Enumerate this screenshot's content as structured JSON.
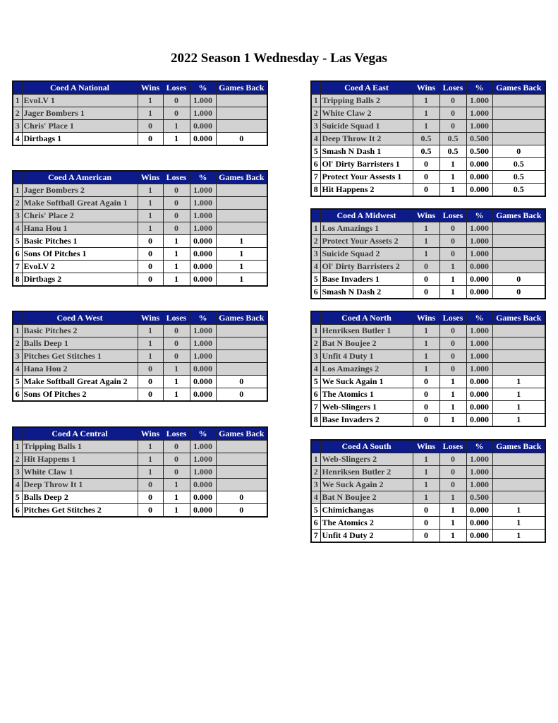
{
  "title": "2022 Season 1 Wednesday - Las Vegas",
  "columns": {
    "wins": "Wins",
    "loses": "Loses",
    "pct": "%",
    "gb": "Games Back"
  },
  "colors": {
    "header_bg": "#0d1a8a",
    "header_text": "#ffffff",
    "shaded_row": "#d2d2d2"
  },
  "divisions": [
    {
      "name": "Coed A National",
      "side": "left",
      "rows": [
        [
          "1",
          "EvoLV 1",
          "1",
          "0",
          "1.000",
          ""
        ],
        [
          "2",
          "Jager Bombers 1",
          "1",
          "0",
          "1.000",
          ""
        ],
        [
          "3",
          "Chris' Place 1",
          "0",
          "1",
          "0.000",
          ""
        ],
        [
          "4",
          "Dirtbags 1",
          "0",
          "1",
          "0.000",
          "0"
        ]
      ]
    },
    {
      "name": "Coed A American",
      "side": "left",
      "rows": [
        [
          "1",
          "Jager Bombers 2",
          "1",
          "0",
          "1.000",
          ""
        ],
        [
          "2",
          "Make Softball Great Again 1",
          "1",
          "0",
          "1.000",
          ""
        ],
        [
          "3",
          "Chris' Place 2",
          "1",
          "0",
          "1.000",
          ""
        ],
        [
          "4",
          "Hana Hou 1",
          "1",
          "0",
          "1.000",
          ""
        ],
        [
          "5",
          "Basic Pitches 1",
          "0",
          "1",
          "0.000",
          "1"
        ],
        [
          "6",
          "Sons Of Pitches 1",
          "0",
          "1",
          "0.000",
          "1"
        ],
        [
          "7",
          "EvoLV 2",
          "0",
          "1",
          "0.000",
          "1"
        ],
        [
          "8",
          "Dirtbags 2",
          "0",
          "1",
          "0.000",
          "1"
        ]
      ]
    },
    {
      "name": "Coed A West",
      "side": "left",
      "rows": [
        [
          "1",
          "Basic Pitches 2",
          "1",
          "0",
          "1.000",
          ""
        ],
        [
          "2",
          "Balls Deep 1",
          "1",
          "0",
          "1.000",
          ""
        ],
        [
          "3",
          "Pitches Get Stitches 1",
          "1",
          "0",
          "1.000",
          ""
        ],
        [
          "4",
          "Hana Hou 2",
          "0",
          "1",
          "0.000",
          ""
        ],
        [
          "5",
          "Make Softball Great Again 2",
          "0",
          "1",
          "0.000",
          "0"
        ],
        [
          "6",
          "Sons Of Pitches 2",
          "0",
          "1",
          "0.000",
          "0"
        ]
      ]
    },
    {
      "name": "Coed A Central",
      "side": "left",
      "rows": [
        [
          "1",
          "Tripping Balls 1",
          "1",
          "0",
          "1.000",
          ""
        ],
        [
          "2",
          "Hit Happens 1",
          "1",
          "0",
          "1.000",
          ""
        ],
        [
          "3",
          "White Claw 1",
          "1",
          "0",
          "1.000",
          ""
        ],
        [
          "4",
          "Deep Throw It 1",
          "0",
          "1",
          "0.000",
          ""
        ],
        [
          "5",
          "Balls Deep 2",
          "0",
          "1",
          "0.000",
          "0"
        ],
        [
          "6",
          "Pitches Get Stitches 2",
          "0",
          "1",
          "0.000",
          "0"
        ]
      ]
    },
    {
      "name": "Coed A East",
      "side": "right",
      "rows": [
        [
          "1",
          "Tripping Balls 2",
          "1",
          "0",
          "1.000",
          ""
        ],
        [
          "2",
          "White Claw 2",
          "1",
          "0",
          "1.000",
          ""
        ],
        [
          "3",
          "Suicide Squad 1",
          "1",
          "0",
          "1.000",
          ""
        ],
        [
          "4",
          "Deep Throw It 2",
          "0.5",
          "0.5",
          "0.500",
          ""
        ],
        [
          "5",
          "Smash N Dash 1",
          "0.5",
          "0.5",
          "0.500",
          "0"
        ],
        [
          "6",
          "Ol' Dirty Barristers 1",
          "0",
          "1",
          "0.000",
          "0.5"
        ],
        [
          "7",
          "Protect Your Assests 1",
          "0",
          "1",
          "0.000",
          "0.5"
        ],
        [
          "8",
          "Hit Happens 2",
          "0",
          "1",
          "0.000",
          "0.5"
        ]
      ]
    },
    {
      "name": "Coed A Midwest",
      "side": "right",
      "rows": [
        [
          "1",
          "Los Amazings 1",
          "1",
          "0",
          "1.000",
          ""
        ],
        [
          "2",
          "Protect Your Assets 2",
          "1",
          "0",
          "1.000",
          ""
        ],
        [
          "3",
          "Suicide Squad 2",
          "1",
          "0",
          "1.000",
          ""
        ],
        [
          "4",
          "Ol' Dirty Barristers 2",
          "0",
          "1",
          "0.000",
          ""
        ],
        [
          "5",
          "Base Invaders 1",
          "0",
          "1",
          "0.000",
          "0"
        ],
        [
          "6",
          "Smash N Dash 2",
          "0",
          "1",
          "0.000",
          "0"
        ]
      ]
    },
    {
      "name": "Coed A North",
      "side": "right",
      "rows": [
        [
          "1",
          "Henriksen Butler 1",
          "1",
          "0",
          "1.000",
          ""
        ],
        [
          "2",
          "Bat N Boujee 2",
          "1",
          "0",
          "1.000",
          ""
        ],
        [
          "3",
          "Unfit 4 Duty 1",
          "1",
          "0",
          "1.000",
          ""
        ],
        [
          "4",
          "Los Amazings 2",
          "1",
          "0",
          "1.000",
          ""
        ],
        [
          "5",
          "We Suck Again 1",
          "0",
          "1",
          "0.000",
          "1"
        ],
        [
          "6",
          "The Atomics 1",
          "0",
          "1",
          "0.000",
          "1"
        ],
        [
          "7",
          "Web-Slingers 1",
          "0",
          "1",
          "0.000",
          "1"
        ],
        [
          "8",
          "Base Invaders 2",
          "0",
          "1",
          "0.000",
          "1"
        ]
      ]
    },
    {
      "name": "Coed A South",
      "side": "right",
      "rows": [
        [
          "1",
          "Web-Slingers 2",
          "1",
          "0",
          "1.000",
          ""
        ],
        [
          "2",
          "Henriksen Butler 2",
          "1",
          "0",
          "1.000",
          ""
        ],
        [
          "3",
          "We Suck Again 2",
          "1",
          "0",
          "1.000",
          ""
        ],
        [
          "4",
          "Bat N Boujee 2",
          "1",
          "1",
          "0.500",
          ""
        ],
        [
          "5",
          "Chimichangas",
          "0",
          "1",
          "0.000",
          "1"
        ],
        [
          "6",
          "The Atomics 2",
          "0",
          "1",
          "0.000",
          "1"
        ],
        [
          "7",
          "Unfit 4 Duty 2",
          "0",
          "1",
          "0.000",
          "1"
        ]
      ]
    }
  ]
}
